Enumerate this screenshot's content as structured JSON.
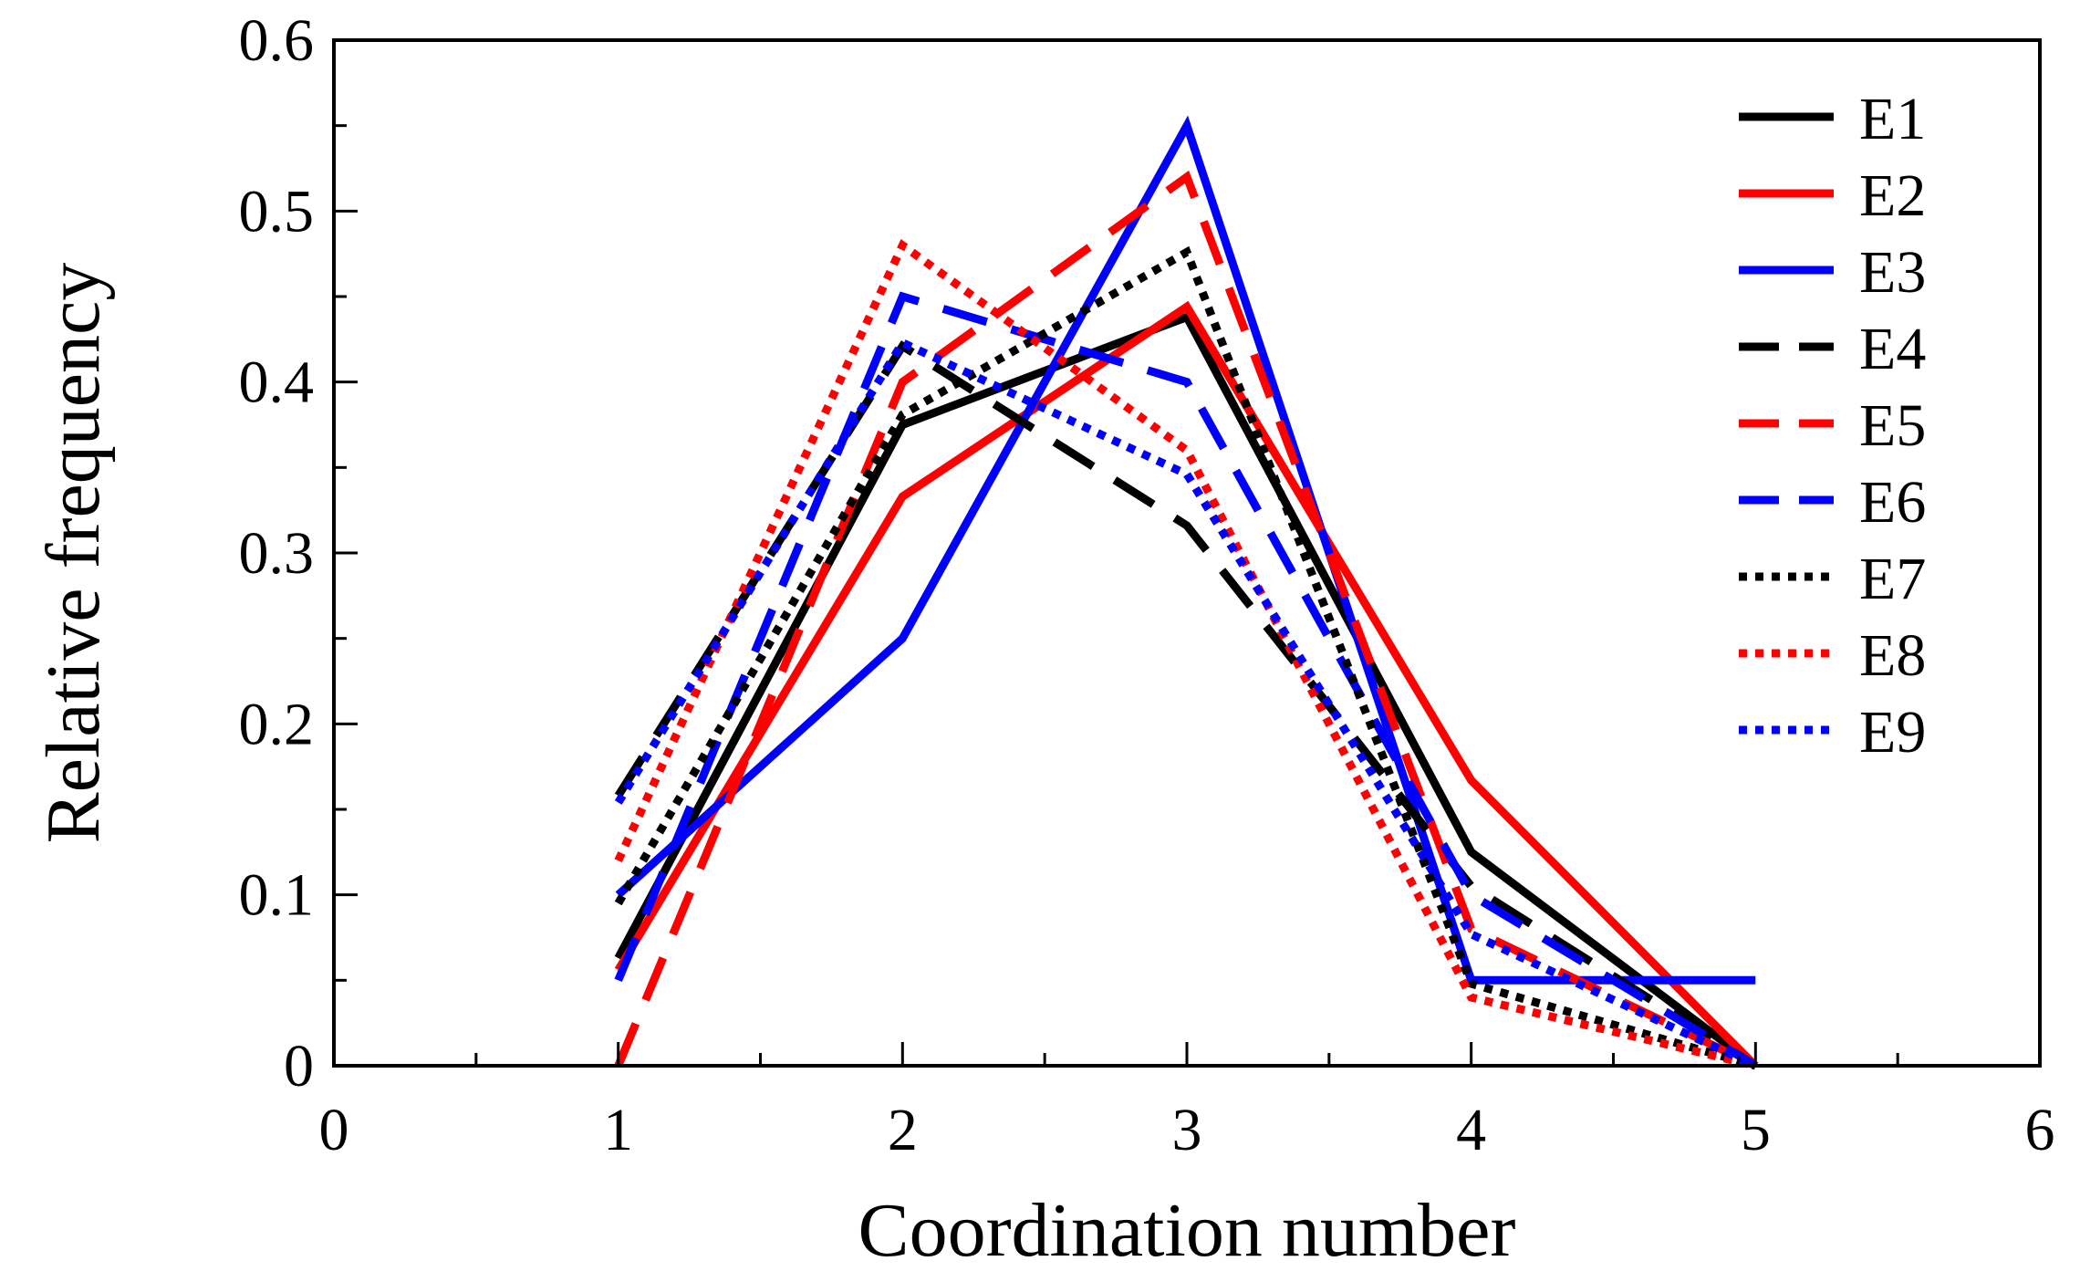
{
  "chart_data": {
    "type": "line",
    "title": "",
    "xlabel": "Coordination number",
    "ylabel": "Relative frequency",
    "xlim": [
      0,
      6
    ],
    "ylim": [
      0,
      0.6
    ],
    "xticks": [
      0,
      1,
      2,
      3,
      4,
      5,
      6
    ],
    "yticks": [
      0,
      0.1,
      0.2,
      0.3,
      0.4,
      0.5,
      0.6
    ],
    "xtick_labels": [
      "0",
      "1",
      "2",
      "3",
      "4",
      "5",
      "6"
    ],
    "ytick_labels": [
      "0",
      "0.1",
      "0.2",
      "0.3",
      "0.4",
      "0.5",
      "0.6"
    ],
    "grid": false,
    "legend_position": "top-right",
    "x": [
      1,
      2,
      3,
      4,
      5
    ],
    "series": [
      {
        "name": "E1",
        "color": "#000000",
        "style": "solid",
        "values": [
          0.063,
          0.375,
          0.438,
          0.125,
          0.0
        ]
      },
      {
        "name": "E2",
        "color": "#ff0000",
        "style": "solid",
        "values": [
          0.056,
          0.333,
          0.444,
          0.167,
          0.0
        ]
      },
      {
        "name": "E3",
        "color": "#0000ff",
        "style": "solid",
        "values": [
          0.1,
          0.25,
          0.55,
          0.05,
          0.05
        ]
      },
      {
        "name": "E4",
        "color": "#000000",
        "style": "dashed",
        "values": [
          0.158,
          0.421,
          0.316,
          0.105,
          0.0
        ]
      },
      {
        "name": "E5",
        "color": "#ff0000",
        "style": "dashed",
        "values": [
          0.0,
          0.4,
          0.52,
          0.08,
          0.0
        ]
      },
      {
        "name": "E6",
        "color": "#0000ff",
        "style": "dashed",
        "values": [
          0.05,
          0.45,
          0.4,
          0.1,
          0.0
        ]
      },
      {
        "name": "E7",
        "color": "#000000",
        "style": "dotted",
        "values": [
          0.095,
          0.381,
          0.476,
          0.048,
          0.0
        ]
      },
      {
        "name": "E8",
        "color": "#ff0000",
        "style": "dotted",
        "values": [
          0.12,
          0.48,
          0.36,
          0.04,
          0.0
        ]
      },
      {
        "name": "E9",
        "color": "#0000ff",
        "style": "dotted",
        "values": [
          0.154,
          0.423,
          0.346,
          0.077,
          0.0
        ]
      }
    ]
  }
}
